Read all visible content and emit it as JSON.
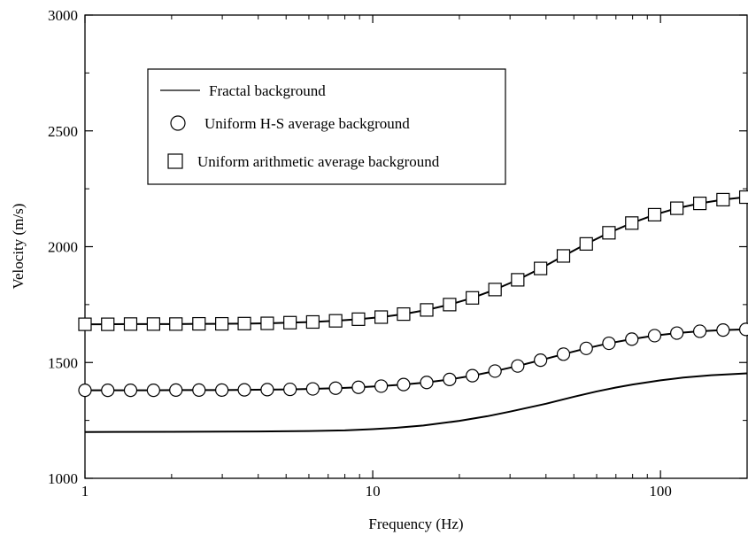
{
  "chart_data": {
    "type": "line",
    "title": "",
    "xlabel": "Frequency (Hz)",
    "ylabel": "Velocity (m/s)",
    "x_scale": "log",
    "xlim": [
      1,
      200
    ],
    "ylim": [
      1000,
      3000
    ],
    "x_ticks": [
      1,
      10,
      100
    ],
    "x_tick_labels": [
      "1",
      "10",
      "100"
    ],
    "y_ticks": [
      1000,
      1500,
      2000,
      2500,
      3000
    ],
    "y_tick_labels": [
      "1000",
      "1500",
      "2000",
      "2500",
      "3000"
    ],
    "grid": false,
    "legend": {
      "placement": "top-left",
      "entries": [
        {
          "label": "Fractal background",
          "marker": "line"
        },
        {
          "label": "Uniform H-S  average background",
          "marker": "circle"
        },
        {
          "label": "Uniform arithmetic average background",
          "marker": "square"
        }
      ]
    },
    "series": [
      {
        "name": "Fractal background",
        "style": "line",
        "x": [
          1,
          2,
          4,
          6,
          8,
          10,
          12,
          15,
          20,
          25,
          30,
          40,
          50,
          60,
          70,
          80,
          100,
          120,
          150,
          200
        ],
        "y": [
          1200,
          1201,
          1202,
          1204,
          1207,
          1212,
          1218,
          1228,
          1248,
          1268,
          1288,
          1322,
          1352,
          1375,
          1392,
          1405,
          1423,
          1435,
          1445,
          1453
        ]
      },
      {
        "name": "Uniform arithmetic average background",
        "style": "line+square",
        "x": [
          1,
          1.2,
          1.44,
          1.73,
          2.07,
          2.49,
          2.99,
          3.58,
          4.3,
          5.16,
          6.19,
          7.43,
          8.92,
          10.7,
          12.8,
          15.4,
          18.5,
          22.2,
          26.6,
          31.9,
          38.3,
          46.0,
          55.2,
          66.2,
          79.5,
          95.4,
          114,
          137,
          165,
          198
        ],
        "y": [
          1665,
          1665,
          1666,
          1666,
          1666,
          1667,
          1667,
          1668,
          1669,
          1672,
          1675,
          1680,
          1687,
          1696,
          1709,
          1727,
          1750,
          1779,
          1815,
          1857,
          1906,
          1960,
          2012,
          2060,
          2102,
          2138,
          2166,
          2187,
          2203,
          2214
        ]
      },
      {
        "name": "Uniform H-S  average background",
        "style": "line+circle",
        "x": [
          1,
          1.2,
          1.44,
          1.73,
          2.07,
          2.49,
          2.99,
          3.58,
          4.3,
          5.16,
          6.19,
          7.43,
          8.92,
          10.7,
          12.8,
          15.4,
          18.5,
          22.2,
          26.6,
          31.9,
          38.3,
          46.0,
          55.2,
          66.2,
          79.5,
          95.4,
          114,
          137,
          165,
          198
        ],
        "y": [
          1380,
          1380,
          1380,
          1380,
          1381,
          1381,
          1381,
          1382,
          1383,
          1384,
          1386,
          1389,
          1393,
          1398,
          1405,
          1414,
          1427,
          1443,
          1463,
          1485,
          1510,
          1536,
          1561,
          1583,
          1601,
          1616,
          1627,
          1635,
          1640,
          1643
        ]
      }
    ]
  }
}
